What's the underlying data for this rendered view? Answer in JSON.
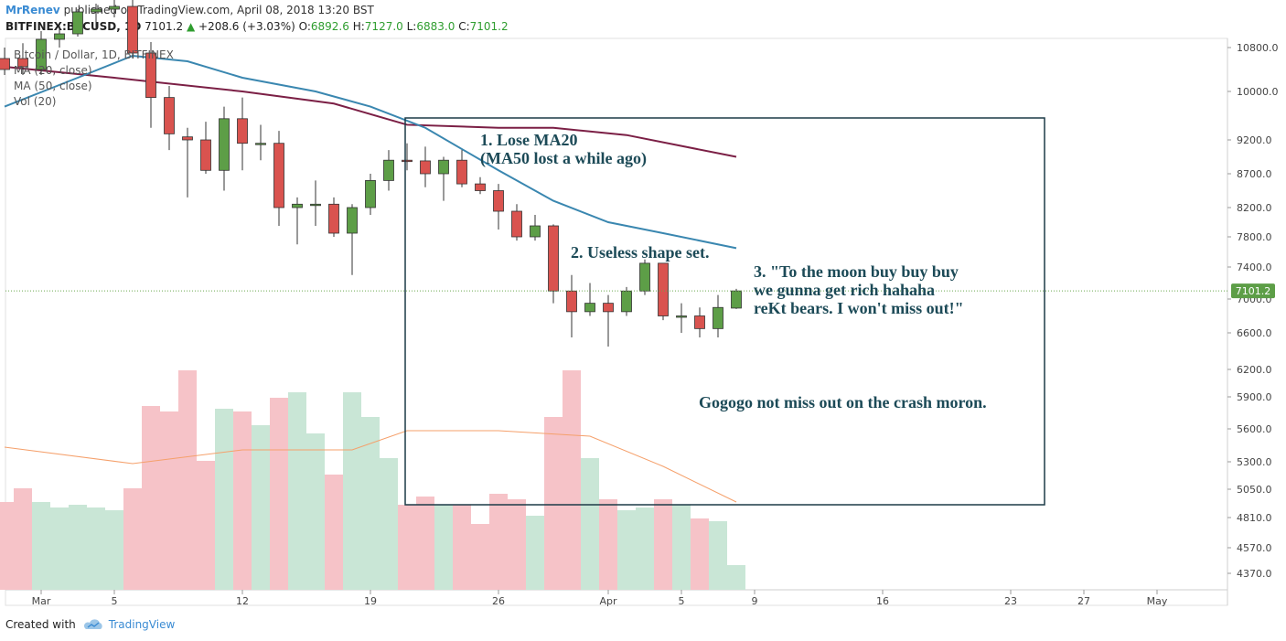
{
  "header": {
    "author": "MrRenev",
    "published": "published on TradingView.com, April 08, 2018 13:20 BST",
    "symbol": "BITFINEX:BTCUSD, 1D",
    "last": "7101.2",
    "change": "+208.6 (+3.03%)",
    "open_label": "O:",
    "open": "6892.6",
    "high_label": "H:",
    "high": "7127.0",
    "low_label": "L:",
    "low": "6883.0",
    "close_label": "C:",
    "close": "7101.2"
  },
  "legend": {
    "title": "Bitcoin / Dollar, 1D, BITFINEX",
    "ma20": "MA (20, close)",
    "ma50": "MA (50, close)",
    "vol": "Vol (20)"
  },
  "footer": {
    "created_with": "Created with",
    "brand": "TradingView"
  },
  "colors": {
    "up": "#5d9e47",
    "down": "#d9534f",
    "ma20": "#3a87b0",
    "ma50": "#7b1f45",
    "vol_up": "#c9e6d6",
    "vol_down": "#f6c3c8",
    "vol_ma": "#f5a06b",
    "box": "#1c3a47",
    "annotation": "#1c4a57",
    "price_tag": "#5d9e47"
  },
  "annotations": [
    {
      "lines": [
        "1. Lose MA20",
        "(MA50 lost a while ago)"
      ]
    },
    {
      "lines": [
        "2. Useless shape set."
      ]
    },
    {
      "lines": [
        "3. \"To the moon buy buy buy",
        "we gunna get rich hahaha",
        "reKt bears. I won't miss out!\""
      ]
    },
    {
      "lines": [
        "Gogogo not miss out on the crash moron."
      ]
    }
  ],
  "chart_data": {
    "type": "candlestick",
    "title": "Bitcoin / Dollar, 1D, BITFINEX",
    "y_ticks": [
      "10800.0",
      "10000.0",
      "9200.0",
      "8700.0",
      "8200.0",
      "7800.0",
      "7400.0",
      "7000.0",
      "6600.0",
      "6200.0",
      "5900.0",
      "5600.0",
      "5300.0",
      "5050.0",
      "4810.0",
      "4570.0",
      "4370.0"
    ],
    "x_ticks": [
      "Mar",
      "5",
      "12",
      "19",
      "26",
      "Apr",
      "5",
      "9",
      "16",
      "23",
      "27",
      "May"
    ],
    "last_price": "7101.2",
    "candles": [
      {
        "date": "2018-02-27",
        "o": 10600,
        "h": 10800,
        "l": 10300,
        "c": 10400
      },
      {
        "date": "2018-02-28",
        "o": 10600,
        "h": 10880,
        "l": 10300,
        "c": 10450
      },
      {
        "date": "2018-03-01",
        "o": 10400,
        "h": 11100,
        "l": 10300,
        "c": 10950
      },
      {
        "date": "2018-03-02",
        "o": 10950,
        "h": 11200,
        "l": 10800,
        "c": 11050
      },
      {
        "date": "2018-03-03",
        "o": 11050,
        "h": 11500,
        "l": 11000,
        "c": 11450
      },
      {
        "date": "2018-03-04",
        "o": 11450,
        "h": 11600,
        "l": 11150,
        "c": 11500
      },
      {
        "date": "2018-03-05",
        "o": 11500,
        "h": 11700,
        "l": 11350,
        "c": 11550
      },
      {
        "date": "2018-03-06",
        "o": 11550,
        "h": 11700,
        "l": 10600,
        "c": 10700
      },
      {
        "date": "2018-03-07",
        "o": 10700,
        "h": 10900,
        "l": 9400,
        "c": 9900
      },
      {
        "date": "2018-03-08",
        "o": 9900,
        "h": 10100,
        "l": 9050,
        "c": 9300
      },
      {
        "date": "2018-03-09",
        "o": 9250,
        "h": 9400,
        "l": 8350,
        "c": 9200
      },
      {
        "date": "2018-03-10",
        "o": 9200,
        "h": 9500,
        "l": 8700,
        "c": 8750
      },
      {
        "date": "2018-03-11",
        "o": 8750,
        "h": 9750,
        "l": 8450,
        "c": 9550
      },
      {
        "date": "2018-03-12",
        "o": 9550,
        "h": 9900,
        "l": 8750,
        "c": 9150
      },
      {
        "date": "2018-03-13",
        "o": 9150,
        "h": 9450,
        "l": 8900,
        "c": 9150
      },
      {
        "date": "2018-03-14",
        "o": 9150,
        "h": 9350,
        "l": 7950,
        "c": 8200
      },
      {
        "date": "2018-03-15",
        "o": 8200,
        "h": 8350,
        "l": 7700,
        "c": 8250
      },
      {
        "date": "2018-03-16",
        "o": 8250,
        "h": 8600,
        "l": 7950,
        "c": 8250
      },
      {
        "date": "2018-03-17",
        "o": 8250,
        "h": 8350,
        "l": 7800,
        "c": 7850
      },
      {
        "date": "2018-03-18",
        "o": 7850,
        "h": 8250,
        "l": 7300,
        "c": 8200
      },
      {
        "date": "2018-03-19",
        "o": 8200,
        "h": 8700,
        "l": 8100,
        "c": 8600
      },
      {
        "date": "2018-03-20",
        "o": 8600,
        "h": 9050,
        "l": 8450,
        "c": 8900
      },
      {
        "date": "2018-03-21",
        "o": 8900,
        "h": 9150,
        "l": 8750,
        "c": 8890
      },
      {
        "date": "2018-03-22",
        "o": 8890,
        "h": 9100,
        "l": 8500,
        "c": 8700
      },
      {
        "date": "2018-03-23",
        "o": 8700,
        "h": 8950,
        "l": 8300,
        "c": 8900
      },
      {
        "date": "2018-03-24",
        "o": 8900,
        "h": 9050,
        "l": 8500,
        "c": 8550
      },
      {
        "date": "2018-03-25",
        "o": 8550,
        "h": 8650,
        "l": 8400,
        "c": 8450
      },
      {
        "date": "2018-03-26",
        "o": 8450,
        "h": 8550,
        "l": 7900,
        "c": 8150
      },
      {
        "date": "2018-03-27",
        "o": 8150,
        "h": 8250,
        "l": 7750,
        "c": 7800
      },
      {
        "date": "2018-03-28",
        "o": 7800,
        "h": 8100,
        "l": 7750,
        "c": 7950
      },
      {
        "date": "2018-03-29",
        "o": 7950,
        "h": 7970,
        "l": 6950,
        "c": 7100
      },
      {
        "date": "2018-03-30",
        "o": 7100,
        "h": 7300,
        "l": 6550,
        "c": 6850
      },
      {
        "date": "2018-03-31",
        "o": 6850,
        "h": 7200,
        "l": 6800,
        "c": 6950
      },
      {
        "date": "2018-04-01",
        "o": 6950,
        "h": 7050,
        "l": 6450,
        "c": 6850
      },
      {
        "date": "2018-04-02",
        "o": 6850,
        "h": 7150,
        "l": 6800,
        "c": 7100
      },
      {
        "date": "2018-04-03",
        "o": 7100,
        "h": 7500,
        "l": 7050,
        "c": 7450
      },
      {
        "date": "2018-04-04",
        "o": 7450,
        "h": 7450,
        "l": 6750,
        "c": 6800
      },
      {
        "date": "2018-04-05",
        "o": 6800,
        "h": 6950,
        "l": 6600,
        "c": 6800
      },
      {
        "date": "2018-04-06",
        "o": 6800,
        "h": 6900,
        "l": 6550,
        "c": 6650
      },
      {
        "date": "2018-04-07",
        "o": 6650,
        "h": 7050,
        "l": 6550,
        "c": 6900
      },
      {
        "date": "2018-04-08",
        "o": 6892.6,
        "h": 7127,
        "l": 6883,
        "c": 7101.2
      }
    ],
    "ma20": [
      {
        "date": "2018-02-27",
        "v": 9750
      },
      {
        "date": "2018-03-03",
        "v": 10250
      },
      {
        "date": "2018-03-06",
        "v": 10650
      },
      {
        "date": "2018-03-09",
        "v": 10550
      },
      {
        "date": "2018-03-12",
        "v": 10250
      },
      {
        "date": "2018-03-16",
        "v": 10000
      },
      {
        "date": "2018-03-19",
        "v": 9750
      },
      {
        "date": "2018-03-22",
        "v": 9400
      },
      {
        "date": "2018-03-26",
        "v": 8750
      },
      {
        "date": "2018-03-29",
        "v": 8300
      },
      {
        "date": "2018-04-01",
        "v": 8000
      },
      {
        "date": "2018-04-04",
        "v": 7850
      },
      {
        "date": "2018-04-08",
        "v": 7650
      }
    ],
    "ma50": [
      {
        "date": "2018-02-27",
        "v": 10450
      },
      {
        "date": "2018-03-05",
        "v": 10250
      },
      {
        "date": "2018-03-12",
        "v": 10000
      },
      {
        "date": "2018-03-17",
        "v": 9800
      },
      {
        "date": "2018-03-21",
        "v": 9450
      },
      {
        "date": "2018-03-26",
        "v": 9400
      },
      {
        "date": "2018-03-29",
        "v": 9400
      },
      {
        "date": "2018-04-02",
        "v": 9280
      },
      {
        "date": "2018-04-08",
        "v": 8950
      }
    ],
    "volume_ma": [
      {
        "date": "2018-02-27",
        "v": 0.52
      },
      {
        "date": "2018-03-06",
        "v": 0.46
      },
      {
        "date": "2018-03-12",
        "v": 0.51
      },
      {
        "date": "2018-03-18",
        "v": 0.51
      },
      {
        "date": "2018-03-21",
        "v": 0.58
      },
      {
        "date": "2018-03-26",
        "v": 0.58
      },
      {
        "date": "2018-03-31",
        "v": 0.56
      },
      {
        "date": "2018-04-04",
        "v": 0.45
      },
      {
        "date": "2018-04-08",
        "v": 0.32
      }
    ],
    "volume": [
      0.32,
      0.37,
      0.32,
      0.3,
      0.31,
      0.3,
      0.29,
      0.37,
      0.67,
      0.65,
      0.8,
      0.47,
      0.66,
      0.65,
      0.6,
      0.7,
      0.72,
      0.57,
      0.42,
      0.72,
      0.63,
      0.48,
      0.31,
      0.34,
      0.31,
      0.31,
      0.24,
      0.35,
      0.33,
      0.27,
      0.63,
      0.8,
      0.48,
      0.33,
      0.29,
      0.3,
      0.33,
      0.31,
      0.26,
      0.25,
      0.09
    ]
  }
}
